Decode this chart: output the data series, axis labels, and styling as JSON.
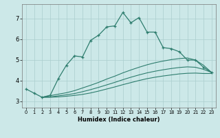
{
  "title": "",
  "xlabel": "Humidex (Indice chaleur)",
  "bg_color": "#cce8e8",
  "grid_color": "#aacece",
  "line_color": "#2e7d6e",
  "xlim": [
    -0.5,
    23.5
  ],
  "ylim": [
    2.7,
    7.7
  ],
  "xticks": [
    0,
    1,
    2,
    3,
    4,
    5,
    6,
    7,
    8,
    9,
    10,
    11,
    12,
    13,
    14,
    15,
    16,
    17,
    18,
    19,
    20,
    21,
    22,
    23
  ],
  "yticks": [
    3,
    4,
    5,
    6,
    7
  ],
  "series_main": {
    "x": [
      0,
      1,
      2,
      3,
      4,
      5,
      6,
      7,
      8,
      9,
      10,
      11,
      12,
      13,
      14,
      15,
      16,
      17,
      18,
      19,
      20,
      21,
      22,
      23
    ],
    "y": [
      3.6,
      3.4,
      3.2,
      3.3,
      4.1,
      4.75,
      5.2,
      5.15,
      5.95,
      6.2,
      6.6,
      6.65,
      7.3,
      6.8,
      7.05,
      6.35,
      6.35,
      5.6,
      5.55,
      5.4,
      5.0,
      5.0,
      4.65,
      4.4
    ]
  },
  "series_upper": {
    "x": [
      2,
      3,
      4,
      5,
      6,
      7,
      8,
      9,
      10,
      11,
      12,
      13,
      14,
      15,
      16,
      17,
      18,
      19,
      20,
      21,
      22,
      23
    ],
    "y": [
      3.2,
      3.28,
      3.35,
      3.42,
      3.52,
      3.65,
      3.78,
      3.92,
      4.08,
      4.22,
      4.38,
      4.52,
      4.65,
      4.77,
      4.87,
      4.95,
      5.02,
      5.07,
      5.1,
      5.0,
      4.75,
      4.4
    ]
  },
  "series_mid": {
    "x": [
      2,
      3,
      4,
      5,
      6,
      7,
      8,
      9,
      10,
      11,
      12,
      13,
      14,
      15,
      16,
      17,
      18,
      19,
      20,
      21,
      22,
      23
    ],
    "y": [
      3.2,
      3.22,
      3.27,
      3.32,
      3.38,
      3.47,
      3.57,
      3.68,
      3.8,
      3.92,
      4.05,
      4.17,
      4.28,
      4.38,
      4.46,
      4.53,
      4.59,
      4.64,
      4.67,
      4.65,
      4.55,
      4.4
    ]
  },
  "series_lower": {
    "x": [
      2,
      3,
      4,
      5,
      6,
      7,
      8,
      9,
      10,
      11,
      12,
      13,
      14,
      15,
      16,
      17,
      18,
      19,
      20,
      21,
      22,
      23
    ],
    "y": [
      3.2,
      3.2,
      3.22,
      3.25,
      3.29,
      3.34,
      3.41,
      3.5,
      3.6,
      3.7,
      3.81,
      3.91,
      4.01,
      4.1,
      4.17,
      4.23,
      4.28,
      4.33,
      4.36,
      4.37,
      4.35,
      4.35
    ]
  }
}
